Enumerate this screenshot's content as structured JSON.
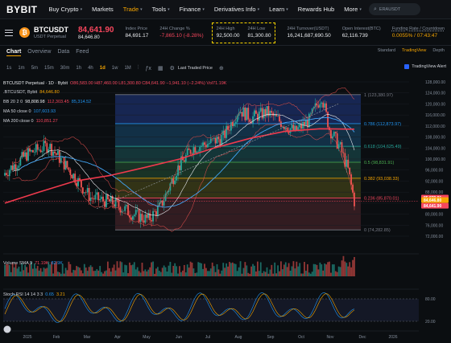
{
  "nav": {
    "logo": "BYBIT",
    "items": [
      {
        "label": "Buy Crypto",
        "dropdown": true
      },
      {
        "label": "Markets",
        "dropdown": false
      },
      {
        "label": "Trade",
        "dropdown": true,
        "active": true
      },
      {
        "label": "Tools",
        "dropdown": true
      },
      {
        "label": "Finance",
        "dropdown": true
      },
      {
        "label": "Derivatives Info",
        "dropdown": true
      },
      {
        "label": "Learn",
        "dropdown": true
      },
      {
        "label": "Rewards Hub",
        "dropdown": false
      },
      {
        "label": "More",
        "dropdown": true
      }
    ],
    "search_placeholder": "ERAUSDT"
  },
  "ticker": {
    "symbol": "BTCUSDT",
    "contract": "USDT Perpetual",
    "last_price": "84,641.90",
    "mark_price": "84,646.80",
    "index_price_label": "Index Price",
    "index_price": "84,691.17",
    "change_label": "24H Change %",
    "change": "-7,865.10 (-8.28%)",
    "high_label": "24H High",
    "high": "92,500.00",
    "low_label": "24H Low",
    "low": "81,300.80",
    "turnover_label": "24H Turnover(USDT)",
    "turnover": "16,241,687,690.50",
    "oi_label": "Open Interest(BTC)",
    "oi": "62,116.739",
    "funding_label": "Funding Rate / Countdown",
    "funding": "0.0055% / 07:43:47"
  },
  "tabs": {
    "items": [
      "Chart",
      "Overview",
      "Data",
      "Feed"
    ],
    "right": [
      "Standard",
      "TradingView",
      "Depth"
    ]
  },
  "toolbar": {
    "timeframes": [
      "1s",
      "1m",
      "5m",
      "15m",
      "30m",
      "1h",
      "4h",
      "1d",
      "1w",
      "1M"
    ],
    "active_timeframe": "1d",
    "price_type": "Last Traded Price",
    "alert": "TradingView Alert"
  },
  "legend": {
    "title": "BTCUSDT Perpetual · 1D · Bybit",
    "ohlc": "O86,583.00 H87,460.00 L81,300.80 C84,641.90 −1,941.10 (−2.24%) Vol71.19K",
    "series_label": ".BTCUSDT, Bybit",
    "series_value": "84,646.80",
    "bb_label": "BB 20 2 0",
    "bb_values": [
      "98,808.98",
      "112,303.45",
      "85,314.52"
    ],
    "ma50_label": "MA 50 close 0",
    "ma50_value": "107,603.93",
    "ma200_label": "MA 200 close 0",
    "ma200_value": "110,851.27",
    "volume_label": "Volume SMA 9",
    "volume_values": [
      "71.19K",
      "82.9K"
    ],
    "stoch_label": "Stoch RSI 14 14 3 3",
    "stoch_values": [
      "0.65",
      "3.21"
    ]
  },
  "fib_levels": [
    {
      "label": "1 (123,380.97)",
      "value": 123380.97,
      "color": "#787b86"
    },
    {
      "label": "0.786 (112,873.97)",
      "value": 112873.97,
      "color": "#2196f3"
    },
    {
      "label": "0.618 (104,625.49)",
      "value": 104625.49,
      "color": "#26a69a"
    },
    {
      "label": "0.5 (98,831.91)",
      "value": 98831.91,
      "color": "#4caf50"
    },
    {
      "label": "0.382 (93,038.33)",
      "value": 93038.33,
      "color": "#f7a600"
    },
    {
      "label": "0.236 (85,870.01)",
      "value": 85870.01,
      "color": "#f6465d"
    },
    {
      "label": "0 (74,282.85)",
      "value": 74282.85,
      "color": "#787b86"
    }
  ],
  "price_axis": [
    "128,000.00",
    "124,000.00",
    "120,000.00",
    "116,000.00",
    "112,000.00",
    "108,000.00",
    "104,000.00",
    "100,000.00",
    "96,000.00",
    "92,000.00",
    "88,000.00",
    "84,000.00",
    "80,000.00",
    "76,000.00",
    "72,000.00"
  ],
  "price_tags": [
    {
      "label": "85,870.01",
      "color": "#f6465d"
    },
    {
      "label": "84,646.80",
      "color": "#f7a600"
    },
    {
      "label": "84,641.90",
      "color": "#f6465d"
    }
  ],
  "time_axis": [
    "2025",
    "Feb",
    "Mar",
    "Apr",
    "May",
    "Jun",
    "Jul",
    "Aug",
    "Sep",
    "Oct",
    "Nov",
    "Dec",
    "2026"
  ],
  "stoch_axis": [
    "80.00",
    "20.00"
  ],
  "chart_data": {
    "type": "candlestick",
    "symbol": "BTCUSDT",
    "interval": "1D",
    "ylim": [
      72000,
      128000
    ],
    "x": [
      "2025-01",
      "2025-02",
      "2025-03",
      "2025-04",
      "2025-05",
      "2025-06",
      "2025-07",
      "2025-08",
      "2025-09",
      "2025-10",
      "2025-11"
    ],
    "close": [
      102000,
      85000,
      82500,
      94000,
      104000,
      107000,
      118000,
      109000,
      114000,
      109500,
      84641.9
    ],
    "ma200": [
      84000,
      88000,
      92000,
      94000,
      97000,
      100000,
      104000,
      107500,
      110000,
      111000,
      110851.27
    ]
  }
}
